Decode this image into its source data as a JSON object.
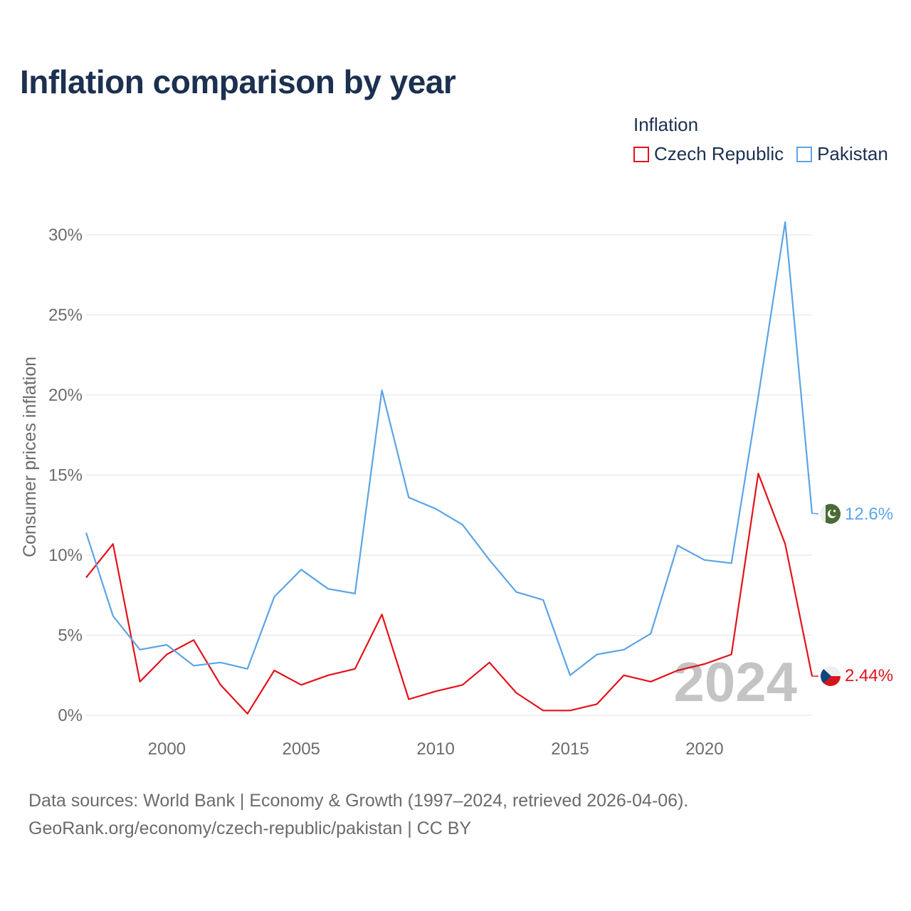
{
  "title": "Inflation comparison by year",
  "legend": {
    "title": "Inflation",
    "items": [
      {
        "label": "Czech Republic",
        "color": "#e3121b"
      },
      {
        "label": "Pakistan",
        "color": "#5ba4e6"
      }
    ]
  },
  "footer": {
    "line1": "Data sources: World Bank | Economy & Growth (1997–2024, retrieved 2026-04-06).",
    "line2": "GeoRank.org/economy/czech-republic/pakistan | CC BY"
  },
  "chart_data": {
    "type": "line",
    "title": "Inflation comparison by year",
    "xlabel": "",
    "ylabel": "Consumer prices inflation",
    "x": [
      1997,
      1998,
      1999,
      2000,
      2001,
      2002,
      2003,
      2004,
      2005,
      2006,
      2007,
      2008,
      2009,
      2010,
      2011,
      2012,
      2013,
      2014,
      2015,
      2016,
      2017,
      2018,
      2019,
      2020,
      2021,
      2022,
      2023,
      2024
    ],
    "xlim": [
      1997,
      2024
    ],
    "ylim": [
      0,
      30
    ],
    "x_ticks": [
      2000,
      2005,
      2010,
      2015,
      2020
    ],
    "y_ticks": [
      0,
      5,
      10,
      15,
      20,
      25,
      30
    ],
    "y_tick_labels": [
      "0%",
      "5%",
      "10%",
      "15%",
      "20%",
      "25%",
      "30%"
    ],
    "grid": true,
    "year_marker": "2024",
    "series": [
      {
        "name": "Czech Republic",
        "color": "#e3121b",
        "end_label": "2.44%",
        "values": [
          8.6,
          10.7,
          2.1,
          3.8,
          4.7,
          1.9,
          0.1,
          2.8,
          1.9,
          2.5,
          2.9,
          6.3,
          1.0,
          1.5,
          1.9,
          3.3,
          1.4,
          0.3,
          0.3,
          0.7,
          2.5,
          2.1,
          2.8,
          3.2,
          3.8,
          15.1,
          10.7,
          2.44
        ]
      },
      {
        "name": "Pakistan",
        "color": "#5ba4e6",
        "end_label": "12.6%",
        "values": [
          11.4,
          6.2,
          4.1,
          4.4,
          3.1,
          3.3,
          2.9,
          7.4,
          9.1,
          7.9,
          7.6,
          20.3,
          13.6,
          12.9,
          11.9,
          9.7,
          7.7,
          7.2,
          2.5,
          3.8,
          4.1,
          5.1,
          10.6,
          9.7,
          9.5,
          19.9,
          30.8,
          12.6
        ]
      }
    ]
  }
}
